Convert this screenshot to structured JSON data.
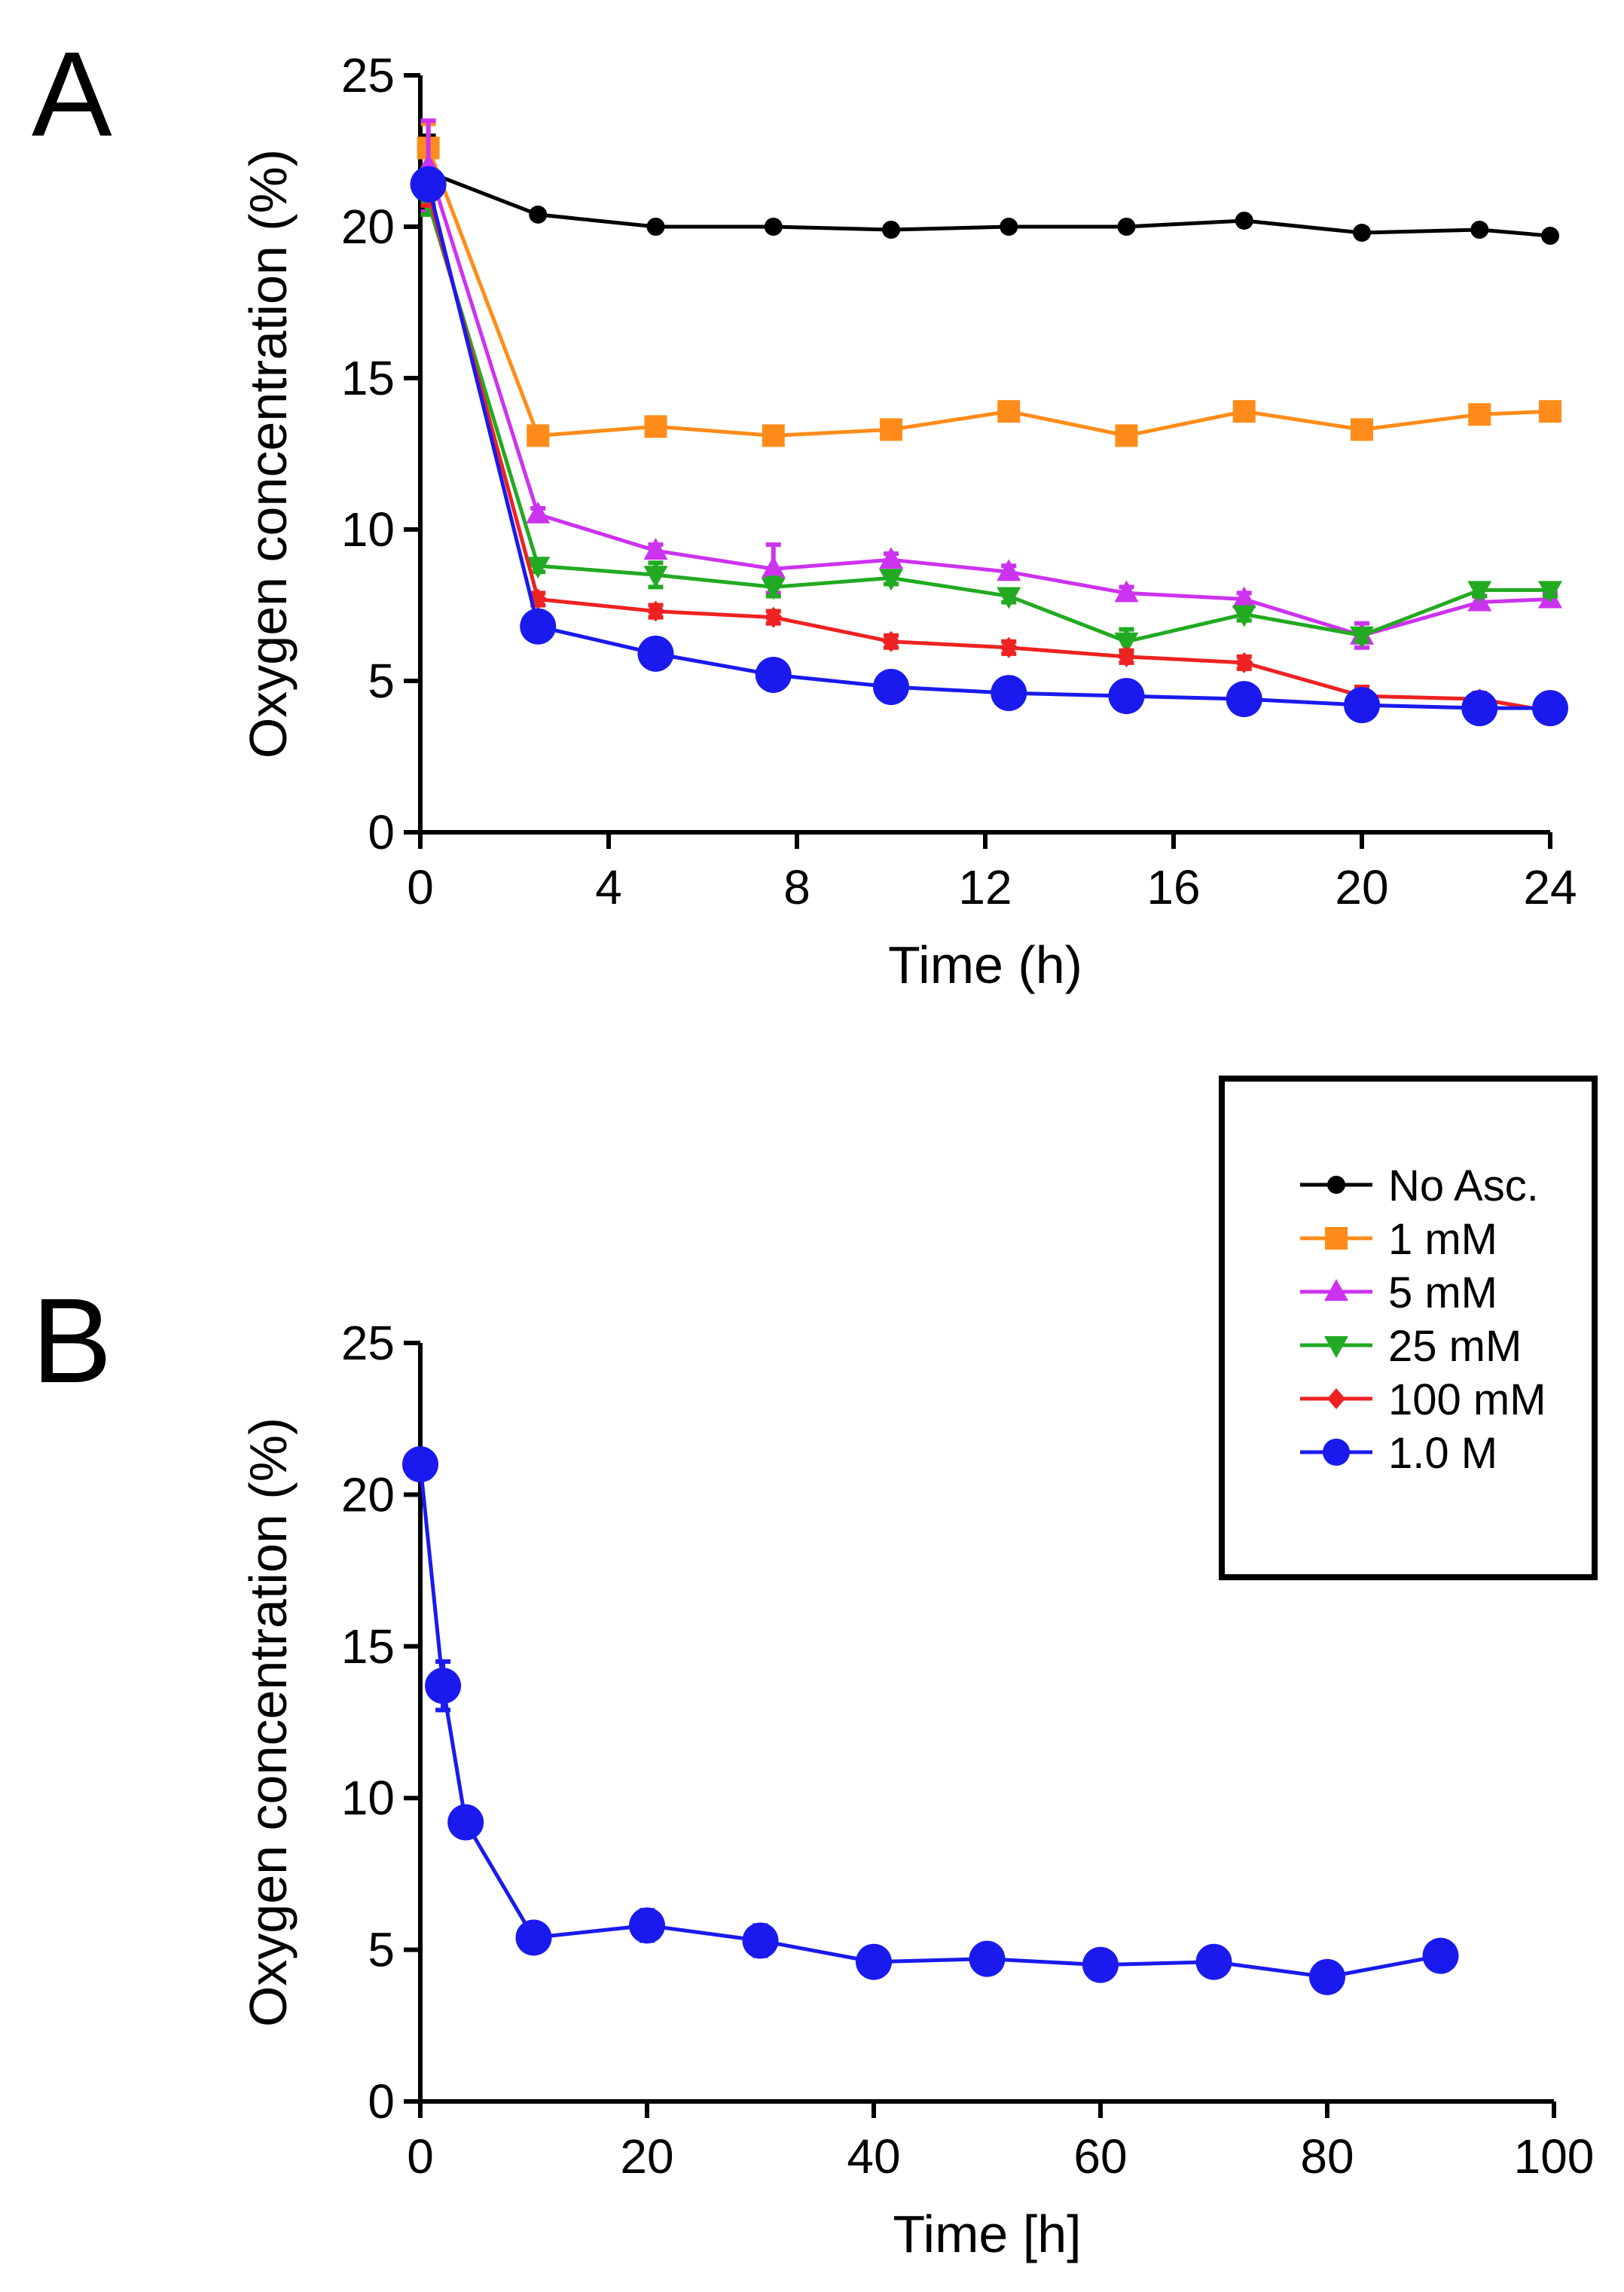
{
  "chart_data": [
    {
      "type": "line",
      "panel_label": "A",
      "xlabel": "Time (h)",
      "ylabel": "Oxygen concentration (%)",
      "xlim": [
        0,
        24
      ],
      "ylim": [
        0,
        25
      ],
      "xticks": [
        0,
        4,
        8,
        12,
        16,
        20,
        24
      ],
      "yticks": [
        0,
        5,
        10,
        15,
        20,
        25
      ],
      "grid": false,
      "x": [
        0.17,
        2.5,
        5,
        7.5,
        10,
        12.5,
        15,
        17.5,
        20,
        22.5,
        24
      ],
      "series": [
        {
          "name": "No Asc.",
          "color": "#000000",
          "marker": "circle-small",
          "values": [
            21.8,
            20.4,
            20.0,
            20.0,
            19.9,
            20.0,
            20.0,
            20.2,
            19.8,
            19.9,
            19.7
          ],
          "errors": [
            1.2,
            0.1,
            0.1,
            0.1,
            0.1,
            0.1,
            0.1,
            0.1,
            0.1,
            0.1,
            0.1
          ]
        },
        {
          "name": "1 mM",
          "color": "#ff8c1a",
          "marker": "square",
          "values": [
            22.6,
            13.1,
            13.4,
            13.1,
            13.3,
            13.9,
            13.1,
            13.9,
            13.3,
            13.8,
            13.9
          ],
          "errors": [
            0.8,
            0.2,
            0.2,
            0.2,
            0.2,
            0.2,
            0.2,
            0.2,
            0.2,
            0.2,
            0.2
          ]
        },
        {
          "name": "5 mM",
          "color": "#cc33ee",
          "marker": "triangle-up",
          "values": [
            22.0,
            10.5,
            9.3,
            8.7,
            9.0,
            8.6,
            7.9,
            7.7,
            6.5,
            7.6,
            7.7
          ],
          "errors": [
            1.5,
            0.2,
            0.2,
            0.8,
            0.2,
            0.2,
            0.2,
            0.2,
            0.4,
            0.2,
            0.2
          ]
        },
        {
          "name": "25 mM",
          "color": "#22aa22",
          "marker": "triangle-down",
          "values": [
            20.8,
            8.8,
            8.5,
            8.1,
            8.4,
            7.8,
            6.3,
            7.2,
            6.5,
            8.0,
            8.0
          ],
          "errors": [
            0.4,
            0.2,
            0.4,
            0.3,
            0.2,
            0.2,
            0.4,
            0.2,
            0.2,
            0.2,
            0.2
          ]
        },
        {
          "name": "100 mM",
          "color": "#ee2222",
          "marker": "diamond",
          "values": [
            21.1,
            7.7,
            7.3,
            7.1,
            6.3,
            6.1,
            5.8,
            5.6,
            4.5,
            4.4,
            4.0
          ],
          "errors": [
            0.4,
            0.2,
            0.2,
            0.2,
            0.2,
            0.2,
            0.2,
            0.2,
            0.3,
            0.2,
            0.2
          ]
        },
        {
          "name": "1.0 M",
          "color": "#1a1aee",
          "marker": "circle-large",
          "values": [
            21.4,
            6.8,
            5.9,
            5.2,
            4.8,
            4.6,
            4.5,
            4.4,
            4.2,
            4.1,
            4.1
          ],
          "errors": [
            0.3,
            0.1,
            0.1,
            0.1,
            0.1,
            0.1,
            0.1,
            0.1,
            0.1,
            0.1,
            0.1
          ]
        }
      ],
      "legend": {
        "placement": "right",
        "entries": [
          "No Asc.",
          "1 mM",
          "5 mM",
          "25 mM",
          "100 mM",
          "1.0 M"
        ]
      }
    },
    {
      "type": "line",
      "panel_label": "B",
      "xlabel": "Time [h]",
      "ylabel": "Oxygen concentration (%)",
      "xlim": [
        0,
        100
      ],
      "ylim": [
        0,
        25
      ],
      "xticks": [
        0,
        20,
        40,
        60,
        80,
        100
      ],
      "yticks": [
        0,
        5,
        10,
        15,
        20,
        25
      ],
      "grid": false,
      "x": [
        0,
        2,
        4,
        10,
        20,
        30,
        40,
        50,
        60,
        70,
        80,
        90
      ],
      "series": [
        {
          "name": "1.0 M",
          "color": "#1a1aee",
          "marker": "circle-large",
          "values": [
            21.0,
            13.7,
            9.2,
            5.4,
            5.8,
            5.3,
            4.6,
            4.7,
            4.5,
            4.6,
            4.1,
            4.8
          ],
          "errors": [
            0.4,
            0.8,
            0.4,
            0.2,
            0.5,
            0.5,
            0.2,
            0.2,
            0.2,
            0.2,
            0.2,
            0.2
          ]
        }
      ]
    }
  ]
}
